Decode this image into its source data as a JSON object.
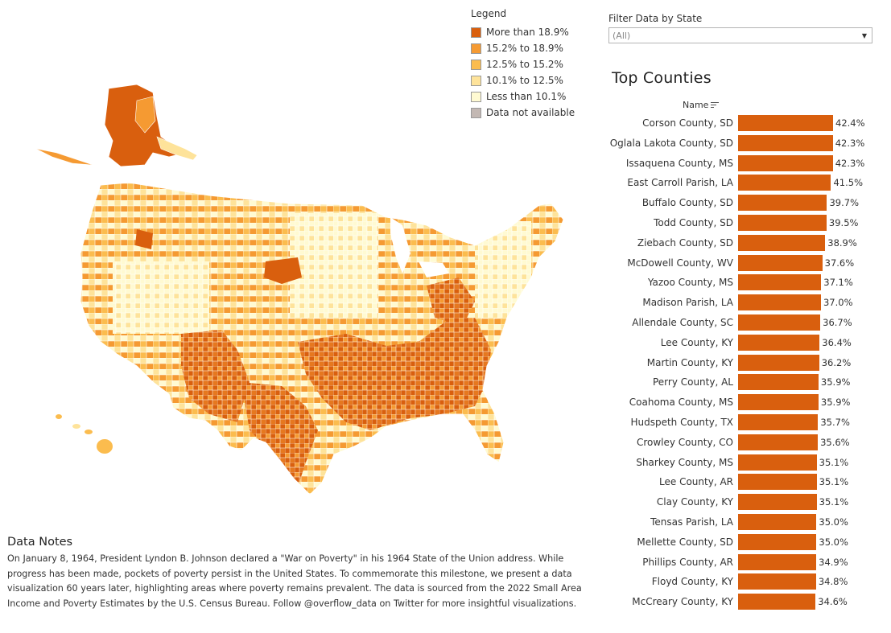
{
  "legend": {
    "title": "Legend",
    "items": [
      {
        "label": "More than 18.9%",
        "color": "#d95f0e"
      },
      {
        "label": "15.2% to 18.9%",
        "color": "#f59a32"
      },
      {
        "label": "12.5% to 15.2%",
        "color": "#fbbc4e"
      },
      {
        "label": "10.1% to 12.5%",
        "color": "#fee39a"
      },
      {
        "label": "Less than 10.1%",
        "color": "#fffad2"
      },
      {
        "label": "Data not available",
        "color": "#c3b8b3"
      }
    ]
  },
  "filter": {
    "title": "Filter Data by State",
    "value": "(All)"
  },
  "top_counties": {
    "title": "Top Counties",
    "column_header": "Name",
    "bar_color": "#d95f0e",
    "rows": [
      {
        "name": "Corson County, SD",
        "value": 42.4,
        "label": "42.4%"
      },
      {
        "name": "Oglala Lakota County, SD",
        "value": 42.3,
        "label": "42.3%"
      },
      {
        "name": "Issaquena County, MS",
        "value": 42.3,
        "label": "42.3%"
      },
      {
        "name": "East Carroll Parish, LA",
        "value": 41.5,
        "label": "41.5%"
      },
      {
        "name": "Buffalo County, SD",
        "value": 39.7,
        "label": "39.7%"
      },
      {
        "name": "Todd County, SD",
        "value": 39.5,
        "label": "39.5%"
      },
      {
        "name": "Ziebach County, SD",
        "value": 38.9,
        "label": "38.9%"
      },
      {
        "name": "McDowell County, WV",
        "value": 37.6,
        "label": "37.6%"
      },
      {
        "name": "Yazoo County, MS",
        "value": 37.1,
        "label": "37.1%"
      },
      {
        "name": "Madison Parish, LA",
        "value": 37.0,
        "label": "37.0%"
      },
      {
        "name": "Allendale County, SC",
        "value": 36.7,
        "label": "36.7%"
      },
      {
        "name": "Lee County, KY",
        "value": 36.4,
        "label": "36.4%"
      },
      {
        "name": "Martin County, KY",
        "value": 36.2,
        "label": "36.2%"
      },
      {
        "name": "Perry County, AL",
        "value": 35.9,
        "label": "35.9%"
      },
      {
        "name": "Coahoma County, MS",
        "value": 35.9,
        "label": "35.9%"
      },
      {
        "name": "Hudspeth County, TX",
        "value": 35.7,
        "label": "35.7%"
      },
      {
        "name": "Crowley County, CO",
        "value": 35.6,
        "label": "35.6%"
      },
      {
        "name": "Sharkey County, MS",
        "value": 35.1,
        "label": "35.1%"
      },
      {
        "name": "Lee County, AR",
        "value": 35.1,
        "label": "35.1%"
      },
      {
        "name": "Clay County, KY",
        "value": 35.1,
        "label": "35.1%"
      },
      {
        "name": "Tensas Parish, LA",
        "value": 35.0,
        "label": "35.0%"
      },
      {
        "name": "Mellette County, SD",
        "value": 35.0,
        "label": "35.0%"
      },
      {
        "name": "Phillips County, AR",
        "value": 34.9,
        "label": "34.9%"
      },
      {
        "name": "Floyd County, KY",
        "value": 34.8,
        "label": "34.8%"
      },
      {
        "name": "McCreary County, KY",
        "value": 34.6,
        "label": "34.6%"
      }
    ]
  },
  "notes": {
    "title": "Data Notes",
    "body": "On January 8, 1964, President Lyndon B. Johnson declared a \"War on Poverty\" in his 1964 State of the Union address. While progress has been made, pockets of poverty persist in the United States. To commemorate this milestone, we present a data visualization 60 years later, highlighting areas where poverty remains prevalent. The data is sourced from the 2022 Small Area Income and Poverty Estimates by the U.S. Census Bureau. Follow @overflow_data on Twitter for more insightful visualizations."
  }
}
